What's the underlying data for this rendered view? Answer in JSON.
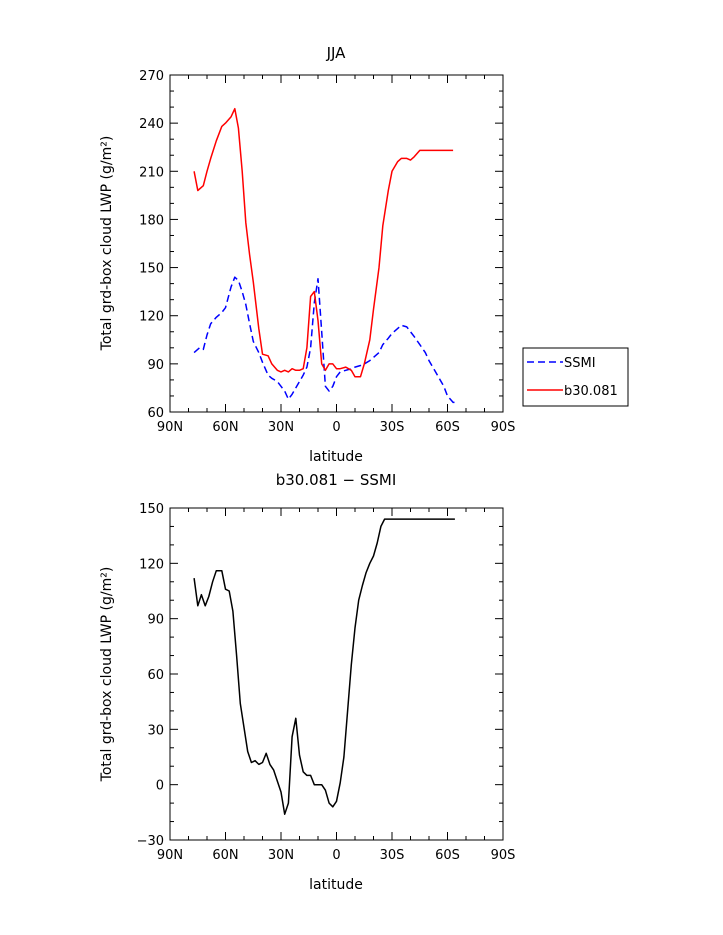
{
  "chart_data": [
    {
      "type": "line",
      "title": "JJA",
      "xlabel": "latitude",
      "ylabel": "Total grd-box cloud LWP (g/m²)",
      "xlim": [
        -90,
        90
      ],
      "ylim": [
        60,
        270
      ],
      "xticks": [
        {
          "value": -90,
          "label": "90N"
        },
        {
          "value": -60,
          "label": "60N"
        },
        {
          "value": -30,
          "label": "30N"
        },
        {
          "value": 0,
          "label": "0"
        },
        {
          "value": 30,
          "label": "30S"
        },
        {
          "value": 60,
          "label": "60S"
        },
        {
          "value": 90,
          "label": "90S"
        }
      ],
      "yticks": [
        60,
        90,
        120,
        150,
        180,
        210,
        240,
        270
      ],
      "legend": {
        "placement": "outside-right"
      },
      "series": [
        {
          "name": "SSMI",
          "color": "#0000ff",
          "dash": true,
          "x": [
            -77,
            -74,
            -72,
            -70,
            -68,
            -65,
            -62,
            -60,
            -57,
            -55,
            -53,
            -51,
            -49,
            -47,
            -45,
            -42,
            -40,
            -37,
            -35,
            -32,
            -30,
            -28,
            -26,
            -24,
            -22,
            -20,
            -18,
            -16,
            -14,
            -12,
            -10,
            -8,
            -6,
            -4,
            -2,
            0,
            2,
            5,
            8,
            10,
            13,
            15,
            18,
            20,
            23,
            25,
            28,
            30,
            33,
            35,
            38,
            40,
            42,
            45,
            48,
            50,
            53,
            55,
            58,
            60,
            63,
            65
          ],
          "values": [
            97,
            100,
            99,
            108,
            115,
            119,
            122,
            125,
            138,
            144,
            142,
            135,
            127,
            115,
            104,
            97,
            91,
            83,
            81,
            79,
            76,
            73,
            68,
            71,
            75,
            79,
            83,
            88,
            100,
            128,
            143,
            110,
            76,
            73,
            76,
            82,
            85,
            86,
            87,
            88,
            89,
            90,
            92,
            94,
            97,
            102,
            106,
            109,
            112,
            114,
            113,
            110,
            107,
            102,
            97,
            92,
            86,
            82,
            76,
            70,
            66,
            66
          ]
        },
        {
          "name": "b30.081",
          "color": "#ff0000",
          "dash": false,
          "x": [
            -77,
            -75,
            -72,
            -70,
            -68,
            -65,
            -62,
            -60,
            -57,
            -55,
            -53,
            -51,
            -49,
            -47,
            -45,
            -42,
            -40,
            -37,
            -35,
            -32,
            -30,
            -28,
            -26,
            -24,
            -22,
            -20,
            -18,
            -16,
            -14,
            -12,
            -10,
            -8,
            -6,
            -4,
            -2,
            0,
            2,
            5,
            8,
            10,
            13,
            15,
            18,
            20,
            23,
            25,
            28,
            30,
            33,
            35,
            38,
            40,
            42,
            45,
            48,
            50,
            53,
            55,
            58,
            60,
            63
          ],
          "values": [
            210,
            198,
            201,
            210,
            218,
            229,
            238,
            240,
            244,
            249,
            237,
            210,
            178,
            158,
            141,
            112,
            96,
            95,
            90,
            86,
            85,
            86,
            85,
            87,
            86,
            86,
            87,
            100,
            132,
            135,
            117,
            90,
            86,
            90,
            90,
            87,
            87,
            88,
            86,
            82,
            82,
            90,
            105,
            124,
            150,
            176,
            198,
            210,
            216,
            218,
            218,
            217,
            219,
            223,
            223,
            223,
            223,
            223,
            223,
            223,
            223
          ]
        }
      ]
    },
    {
      "type": "line",
      "title": "b30.081 − SSMI",
      "xlabel": "latitude",
      "ylabel": "Total grd-box cloud LWP (g/m²)",
      "xlim": [
        -90,
        90
      ],
      "ylim": [
        -30,
        150
      ],
      "xticks": [
        {
          "value": -90,
          "label": "90N"
        },
        {
          "value": -60,
          "label": "60N"
        },
        {
          "value": -30,
          "label": "30N"
        },
        {
          "value": 0,
          "label": "0"
        },
        {
          "value": 30,
          "label": "30S"
        },
        {
          "value": 60,
          "label": "60S"
        },
        {
          "value": 90,
          "label": "90S"
        }
      ],
      "yticks": [
        -30,
        0,
        30,
        60,
        90,
        120,
        150
      ],
      "series": [
        {
          "color": "#000000",
          "dash": false,
          "x": [
            -77,
            -75,
            -73,
            -71,
            -69,
            -67,
            -65,
            -62,
            -60,
            -58,
            -56,
            -54,
            -52,
            -50,
            -48,
            -46,
            -44,
            -42,
            -40,
            -38,
            -36,
            -34,
            -32,
            -30,
            -28,
            -26,
            -24,
            -22,
            -20,
            -18,
            -16,
            -14,
            -12,
            -10,
            -8,
            -6,
            -4,
            -2,
            0,
            2,
            4,
            6,
            8,
            10,
            12,
            14,
            16,
            18,
            20,
            22,
            24,
            26,
            28,
            30,
            32,
            34,
            36,
            38,
            40,
            42,
            44,
            46,
            48,
            50,
            52,
            54,
            56,
            58,
            60,
            62,
            64
          ],
          "values": [
            112,
            97,
            103,
            97,
            102,
            110,
            116,
            116,
            106,
            105,
            94,
            70,
            44,
            31,
            18,
            12,
            13,
            11,
            12,
            17,
            11,
            8,
            2,
            -4,
            -16,
            -10,
            26,
            36,
            16,
            7,
            5,
            5,
            0,
            0,
            0,
            -3,
            -10,
            -12,
            -9,
            1,
            15,
            40,
            65,
            85,
            100,
            108,
            115,
            120,
            124,
            131,
            140,
            144,
            144,
            144,
            144,
            144,
            144,
            144,
            144,
            144,
            144,
            144,
            144,
            144,
            144,
            144,
            144,
            144,
            144,
            144,
            144
          ]
        }
      ]
    }
  ]
}
